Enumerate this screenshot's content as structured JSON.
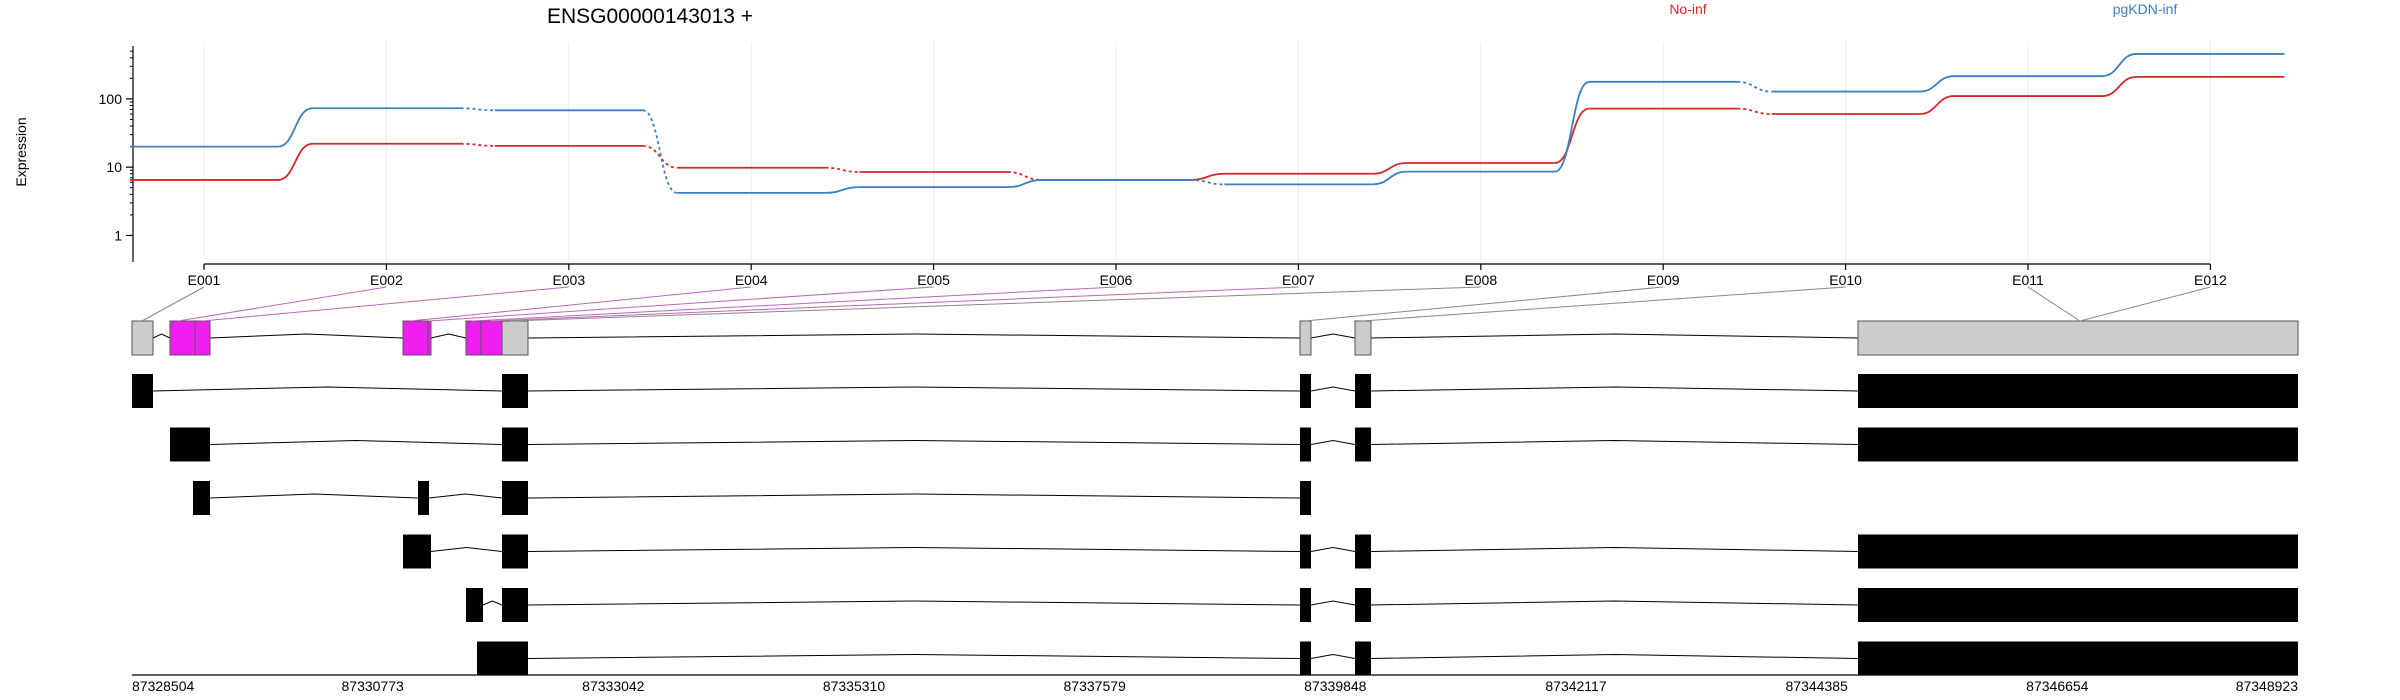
{
  "chart_data": {
    "type": "line",
    "title": "ENSG00000143013 +",
    "ylabel": "Expression",
    "xlabel": "",
    "yscale": "log",
    "ylim": [
      0.5,
      520
    ],
    "y_ticks": [
      1,
      10,
      100
    ],
    "y_tick_labels": [
      "1",
      "10",
      "100"
    ],
    "grid": "vertical",
    "legend_placement": "top-right",
    "categories": [
      "E001",
      "E002",
      "E003",
      "E004",
      "E005",
      "E006",
      "E007",
      "E008",
      "E009",
      "E010",
      "E011",
      "E012"
    ],
    "series": [
      {
        "name": "No-inf",
        "color": "#d62728",
        "values": [
          6.5,
          22,
          20.5,
          9.8,
          8.5,
          6.5,
          8,
          11.5,
          72,
          60,
          110,
          210
        ]
      },
      {
        "name": "pgKDN-inf",
        "color": "#3a7fc0",
        "values": [
          20,
          73,
          68,
          4.2,
          5.1,
          6.5,
          5.6,
          8.6,
          178,
          128,
          215,
          455
        ]
      }
    ],
    "genome_ticks": [
      "87328504",
      "87330773",
      "87333042",
      "87335310",
      "87337579",
      "87339848",
      "87342117",
      "87344385",
      "87346654",
      "87348923"
    ],
    "exon_colors": {
      "highlight": "#ef1fef",
      "neutral": "#cccccc",
      "transcript": "#000000"
    }
  }
}
